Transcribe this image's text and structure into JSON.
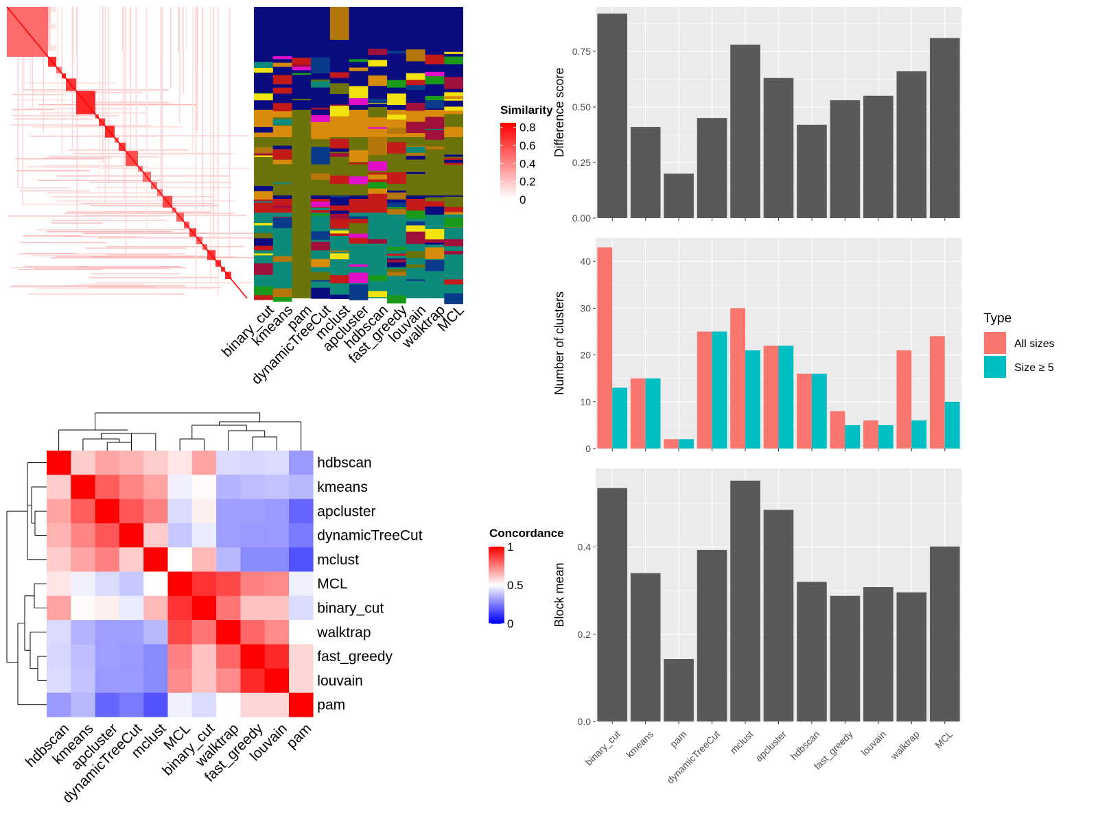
{
  "colors": {
    "panel_bg": "#EBEBEB",
    "grid": "#FFFFFF",
    "bar": "#595959",
    "all_sizes": "#F8766D",
    "size5": "#00BFC4",
    "sim_high": "#FF0000",
    "conc_high": "#FF0000",
    "conc_mid": "#FFFFFF",
    "conc_low": "#0000FF"
  },
  "similarity_legend": {
    "title": "Similarity",
    "ticks": [
      "0.8",
      "0.6",
      "0.4",
      "0.2",
      "0"
    ],
    "tick_values": [
      0.8,
      0.6,
      0.4,
      0.2,
      0
    ]
  },
  "concordance_legend": {
    "title": "Concordance",
    "ticks": [
      "1",
      "0.5",
      "0"
    ],
    "tick_values": [
      1,
      0.5,
      0
    ]
  },
  "type_legend": {
    "title": "Type",
    "items": [
      "All sizes",
      "Size ≥ 5"
    ]
  },
  "chart_data": [
    {
      "id": "difference",
      "type": "bar",
      "categories": [
        "binary_cut",
        "kmeans",
        "pam",
        "dynamicTreeCut",
        "mclust",
        "apcluster",
        "hdbscan",
        "fast_greedy",
        "louvain",
        "walktrap",
        "MCL"
      ],
      "values": [
        0.92,
        0.41,
        0.2,
        0.45,
        0.78,
        0.63,
        0.42,
        0.53,
        0.55,
        0.66,
        0.81
      ],
      "ylabel": "Difference score",
      "ylim": [
        0,
        0.95
      ],
      "yticks": [
        "0.00",
        "0.25",
        "0.50",
        "0.75"
      ],
      "ytick_values": [
        0,
        0.25,
        0.5,
        0.75
      ],
      "grid": true
    },
    {
      "id": "clusters",
      "type": "bar",
      "categories": [
        "binary_cut",
        "kmeans",
        "pam",
        "dynamicTreeCut",
        "mclust",
        "apcluster",
        "hdbscan",
        "fast_greedy",
        "louvain",
        "walktrap",
        "MCL"
      ],
      "series": [
        {
          "name": "All sizes",
          "values": [
            43,
            15,
            2,
            25,
            30,
            22,
            16,
            8,
            6,
            21,
            24
          ]
        },
        {
          "name": "Size ≥ 5",
          "values": [
            13,
            15,
            2,
            25,
            21,
            22,
            16,
            5,
            5,
            6,
            10
          ]
        }
      ],
      "ylabel": "Number of clusters",
      "ylim": [
        0,
        45
      ],
      "yticks": [
        "0",
        "10",
        "20",
        "30",
        "40"
      ],
      "ytick_values": [
        0,
        10,
        20,
        30,
        40
      ],
      "legend": "right",
      "grid": true
    },
    {
      "id": "block",
      "type": "bar",
      "categories": [
        "binary_cut",
        "kmeans",
        "pam",
        "dynamicTreeCut",
        "mclust",
        "apcluster",
        "hdbscan",
        "fast_greedy",
        "louvain",
        "walktrap",
        "MCL"
      ],
      "values": [
        0.535,
        0.34,
        0.143,
        0.393,
        0.552,
        0.485,
        0.32,
        0.288,
        0.308,
        0.296,
        0.401
      ],
      "ylabel": "Block mean",
      "ylim": [
        0,
        0.58
      ],
      "yticks": [
        "0.0",
        "0.2",
        "0.4"
      ],
      "ytick_values": [
        0,
        0.2,
        0.4
      ],
      "grid": true
    },
    {
      "id": "concordance",
      "type": "heatmap",
      "labels": [
        "hdbscan",
        "kmeans",
        "apcluster",
        "dynamicTreeCut",
        "mclust",
        "MCL",
        "binary_cut",
        "walktrap",
        "fast_greedy",
        "louvain",
        "pam"
      ],
      "matrix": [
        [
          1,
          0.6,
          0.68,
          0.65,
          0.6,
          0.55,
          0.68,
          0.43,
          0.42,
          0.43,
          0.3
        ],
        [
          0.6,
          1,
          0.82,
          0.74,
          0.68,
          0.47,
          0.51,
          0.35,
          0.37,
          0.38,
          0.36
        ],
        [
          0.68,
          0.82,
          1,
          0.83,
          0.75,
          0.43,
          0.53,
          0.31,
          0.31,
          0.3,
          0.2
        ],
        [
          0.65,
          0.74,
          0.83,
          1,
          0.6,
          0.39,
          0.46,
          0.31,
          0.3,
          0.3,
          0.24
        ],
        [
          0.6,
          0.68,
          0.75,
          0.6,
          1,
          0.5,
          0.64,
          0.36,
          0.27,
          0.27,
          0.16
        ],
        [
          0.55,
          0.47,
          0.43,
          0.39,
          0.5,
          1,
          0.9,
          0.86,
          0.75,
          0.73,
          0.47
        ],
        [
          0.68,
          0.51,
          0.53,
          0.46,
          0.64,
          0.9,
          1,
          0.77,
          0.62,
          0.62,
          0.43
        ],
        [
          0.43,
          0.35,
          0.31,
          0.31,
          0.36,
          0.86,
          0.77,
          1,
          0.8,
          0.73,
          0.5
        ],
        [
          0.42,
          0.37,
          0.31,
          0.3,
          0.27,
          0.75,
          0.62,
          0.8,
          1,
          0.92,
          0.58
        ],
        [
          0.43,
          0.38,
          0.3,
          0.3,
          0.27,
          0.73,
          0.62,
          0.73,
          0.92,
          1,
          0.58
        ],
        [
          0.3,
          0.36,
          0.2,
          0.24,
          0.16,
          0.47,
          0.43,
          0.5,
          0.58,
          0.58,
          1
        ]
      ]
    },
    {
      "id": "membership",
      "type": "heatmap",
      "columns": [
        "binary_cut",
        "kmeans",
        "pam",
        "dynamicTreeCut",
        "mclust",
        "apcluster",
        "hdbscan",
        "fast_greedy",
        "louvain",
        "walktrap",
        "MCL"
      ]
    },
    {
      "id": "similarity",
      "type": "heatmap",
      "columns": []
    }
  ]
}
